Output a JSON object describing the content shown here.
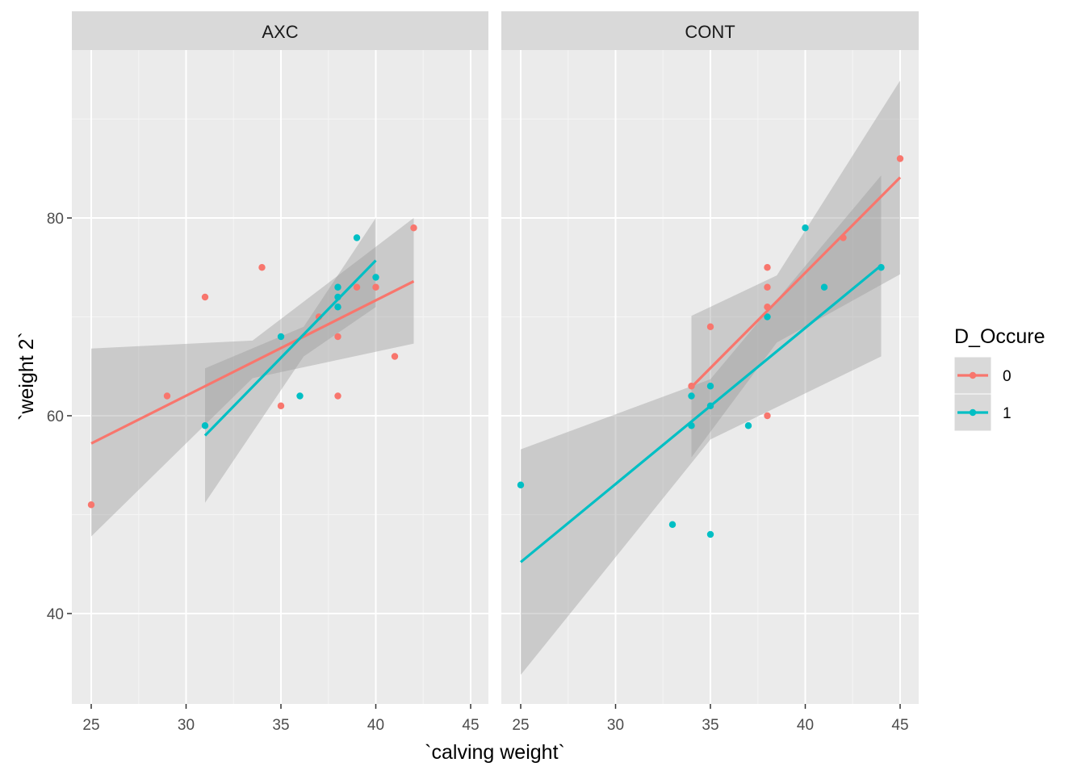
{
  "chart_data": {
    "type": "scatter",
    "xlabel": "`calving weight`",
    "ylabel": "`weight 2`",
    "xlim": [
      24,
      46
    ],
    "ylim": [
      31,
      99
    ],
    "x_ticks": [
      "25",
      "30",
      "35",
      "40",
      "45"
    ],
    "y_ticks": [
      "40",
      "60",
      "80"
    ],
    "grid": true,
    "legend": {
      "title": "D_Occure",
      "position": "right",
      "entries": [
        {
          "label": "0",
          "color": "#F8766D"
        },
        {
          "label": "1",
          "color": "#00BFC4"
        }
      ]
    },
    "colors": {
      "0": "#F8766D",
      "1": "#00BFC4",
      "band": "#999999"
    },
    "facets": [
      {
        "label": "AXC",
        "series": [
          {
            "group": "0",
            "points": [
              [
                25,
                51
              ],
              [
                29,
                62
              ],
              [
                31,
                72
              ],
              [
                34,
                75
              ],
              [
                35,
                61
              ],
              [
                37,
                70
              ],
              [
                38,
                68
              ],
              [
                38,
                62
              ],
              [
                39,
                73
              ],
              [
                40,
                73
              ],
              [
                41,
                66
              ],
              [
                42,
                79
              ]
            ],
            "fit": {
              "x": [
                25,
                42
              ],
              "y": [
                57.2,
                73.6
              ]
            },
            "ci": {
              "x": [
                25,
                33.5,
                42
              ],
              "lower": [
                47.8,
                63.8,
                67.3
              ],
              "upper": [
                66.8,
                67.6,
                80.0
              ]
            }
          },
          {
            "group": "1",
            "points": [
              [
                31,
                59
              ],
              [
                35,
                68
              ],
              [
                36,
                62
              ],
              [
                38,
                73
              ],
              [
                38,
                72
              ],
              [
                38,
                71
              ],
              [
                39,
                78
              ],
              [
                40,
                74
              ]
            ],
            "fit": {
              "x": [
                31,
                40
              ],
              "y": [
                58.0,
                75.7
              ]
            },
            "ci": {
              "x": [
                31,
                36.2,
                40
              ],
              "lower": [
                51.2,
                66.0,
                71.0
              ],
              "upper": [
                64.8,
                69.0,
                80.0
              ]
            }
          }
        ]
      },
      {
        "label": "CONT",
        "series": [
          {
            "group": "0",
            "points": [
              [
                34,
                63
              ],
              [
                35,
                69
              ],
              [
                38,
                75
              ],
              [
                38,
                73
              ],
              [
                38,
                71
              ],
              [
                38,
                60
              ],
              [
                42,
                78
              ],
              [
                45,
                86
              ]
            ],
            "fit": {
              "x": [
                34,
                45
              ],
              "y": [
                62.9,
                84.1
              ]
            },
            "ci": {
              "x": [
                34,
                38.5,
                45
              ],
              "lower": [
                55.8,
                67.4,
                74.3
              ],
              "upper": [
                70.1,
                74.2,
                93.9
              ]
            }
          },
          {
            "group": "1",
            "points": [
              [
                25,
                53
              ],
              [
                33,
                49
              ],
              [
                34,
                62
              ],
              [
                34,
                59
              ],
              [
                35,
                63
              ],
              [
                35,
                61
              ],
              [
                35,
                48
              ],
              [
                37,
                59
              ],
              [
                38,
                70
              ],
              [
                40,
                79
              ],
              [
                41,
                73
              ],
              [
                44,
                75
              ]
            ],
            "fit": {
              "x": [
                25,
                44
              ],
              "y": [
                45.2,
                75.2
              ]
            },
            "ci": {
              "x": [
                25,
                35,
                44
              ],
              "lower": [
                33.8,
                57.6,
                66.0
              ],
              "upper": [
                56.6,
                63.7,
                84.3
              ]
            }
          }
        ]
      }
    ]
  }
}
